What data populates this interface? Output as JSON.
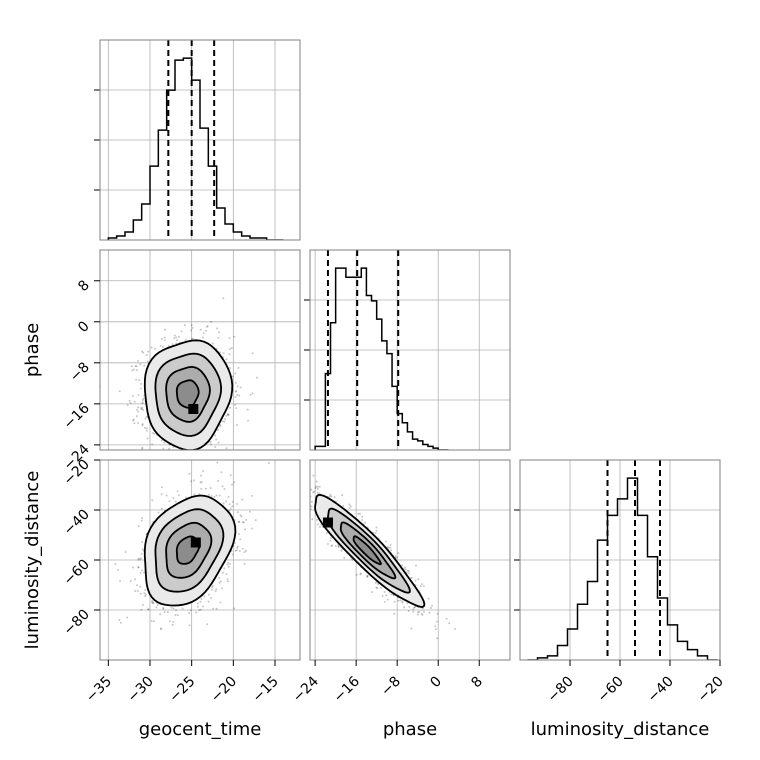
{
  "chart_data": {
    "type": "corner",
    "parameters": [
      "geocent_time",
      "phase",
      "luminosity_distance"
    ],
    "axis_labels": {
      "geocent_time": "geocent_time",
      "phase": "phase",
      "luminosity_distance": "luminosity_distance"
    },
    "ranges": {
      "geocent_time": [
        -36,
        -12
      ],
      "phase": [
        -25,
        14
      ],
      "luminosity_distance": [
        -100,
        -20
      ]
    },
    "ticks": {
      "geocent_time": [
        -35,
        -30,
        -25,
        -20,
        -15
      ],
      "phase": [
        -24,
        -16,
        -8,
        0,
        8
      ],
      "luminosity_distance": [
        -80,
        -60,
        -40,
        -20
      ]
    },
    "tick_labels": {
      "geocent_time": [
        "−35",
        "−30",
        "−25",
        "−20",
        "−15"
      ],
      "phase": [
        "−24",
        "−16",
        "−8",
        "0",
        "8"
      ],
      "luminosity_distance": [
        "−80",
        "−60",
        "−40",
        "−20"
      ]
    },
    "grid": true,
    "histograms": [
      {
        "param": "geocent_time",
        "bin_edges": [
          -35,
          -34,
          -33,
          -32,
          -31,
          -30,
          -29,
          -28,
          -27,
          -26,
          -25,
          -24,
          -23,
          -22,
          -21,
          -20,
          -19,
          -18,
          -17,
          -16,
          -15,
          -14
        ],
        "counts": [
          1,
          2,
          4,
          10,
          18,
          37,
          55,
          75,
          90,
          91,
          80,
          56,
          37,
          16,
          8,
          4,
          2,
          1,
          1,
          0,
          0
        ],
        "quantiles": [
          -27.8,
          -25.0,
          -22.3
        ]
      },
      {
        "param": "phase",
        "bin_edges": [
          -24,
          -23,
          -22,
          -21,
          -20,
          -19,
          -18,
          -17,
          -16,
          -15,
          -14,
          -13,
          -12,
          -11,
          -10,
          -9,
          -8,
          -7,
          -6,
          -5,
          -4,
          -3,
          -2,
          -1,
          0,
          1,
          2
        ],
        "counts": [
          2,
          2,
          42,
          70,
          100,
          100,
          95,
          95,
          95,
          100,
          85,
          82,
          72,
          60,
          53,
          35,
          20,
          15,
          10,
          6,
          5,
          3,
          2,
          1,
          0,
          0
        ],
        "quantiles": [
          -21.5,
          -15.8,
          -7.8
        ]
      },
      {
        "param": "luminosity_distance",
        "bin_edges": [
          -97,
          -93,
          -89,
          -85,
          -81,
          -77,
          -73,
          -69,
          -65,
          -61,
          -57,
          -53,
          -49,
          -45,
          -41,
          -37,
          -33,
          -29,
          -25,
          -21
        ],
        "counts": [
          0,
          1,
          2,
          7,
          15,
          27,
          38,
          58,
          70,
          78,
          88,
          70,
          50,
          30,
          17,
          9,
          5,
          2,
          0
        ],
        "quantiles": [
          -65.0,
          -54.0,
          -44.0
        ]
      }
    ],
    "joint": [
      {
        "x": "geocent_time",
        "y": "phase",
        "mean": [
          -25.5,
          -14.0
        ],
        "std": [
          2.6,
          5.3
        ],
        "corr": 0.05,
        "contour_levels": [
          0.5,
          1.0,
          1.5,
          2.0
        ],
        "peak": [
          -24.8,
          -17.0
        ]
      },
      {
        "x": "geocent_time",
        "y": "luminosity_distance",
        "mean": [
          -25.5,
          -56.0
        ],
        "std": [
          2.7,
          11.0
        ],
        "corr": 0.3,
        "contour_levels": [
          0.5,
          1.0,
          1.5,
          2.0
        ],
        "peak": [
          -24.5,
          -53.0
        ]
      },
      {
        "x": "phase",
        "y": "luminosity_distance",
        "mean": [
          -14.0,
          -56.0
        ],
        "std": [
          5.3,
          11.0
        ],
        "corr": -0.92,
        "contour_levels": [
          0.5,
          1.0,
          1.5,
          2.0
        ],
        "peak": [
          -21.5,
          -45.0
        ]
      }
    ]
  }
}
